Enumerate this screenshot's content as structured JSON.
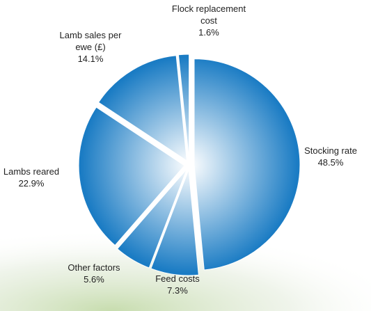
{
  "chart_data": {
    "type": "pie",
    "categories": [
      "Stocking rate",
      "Feed costs",
      "Other factors",
      "Lambs reared",
      "Lamb sales per ewe (£)",
      "Flock replacement cost"
    ],
    "values": [
      48.5,
      7.3,
      5.6,
      22.9,
      14.1,
      1.6
    ],
    "value_labels": [
      "48.5%",
      "7.3%",
      "5.6%",
      "22.9%",
      "14.1%",
      "1.6%"
    ],
    "color": "#1b7cc4"
  }
}
